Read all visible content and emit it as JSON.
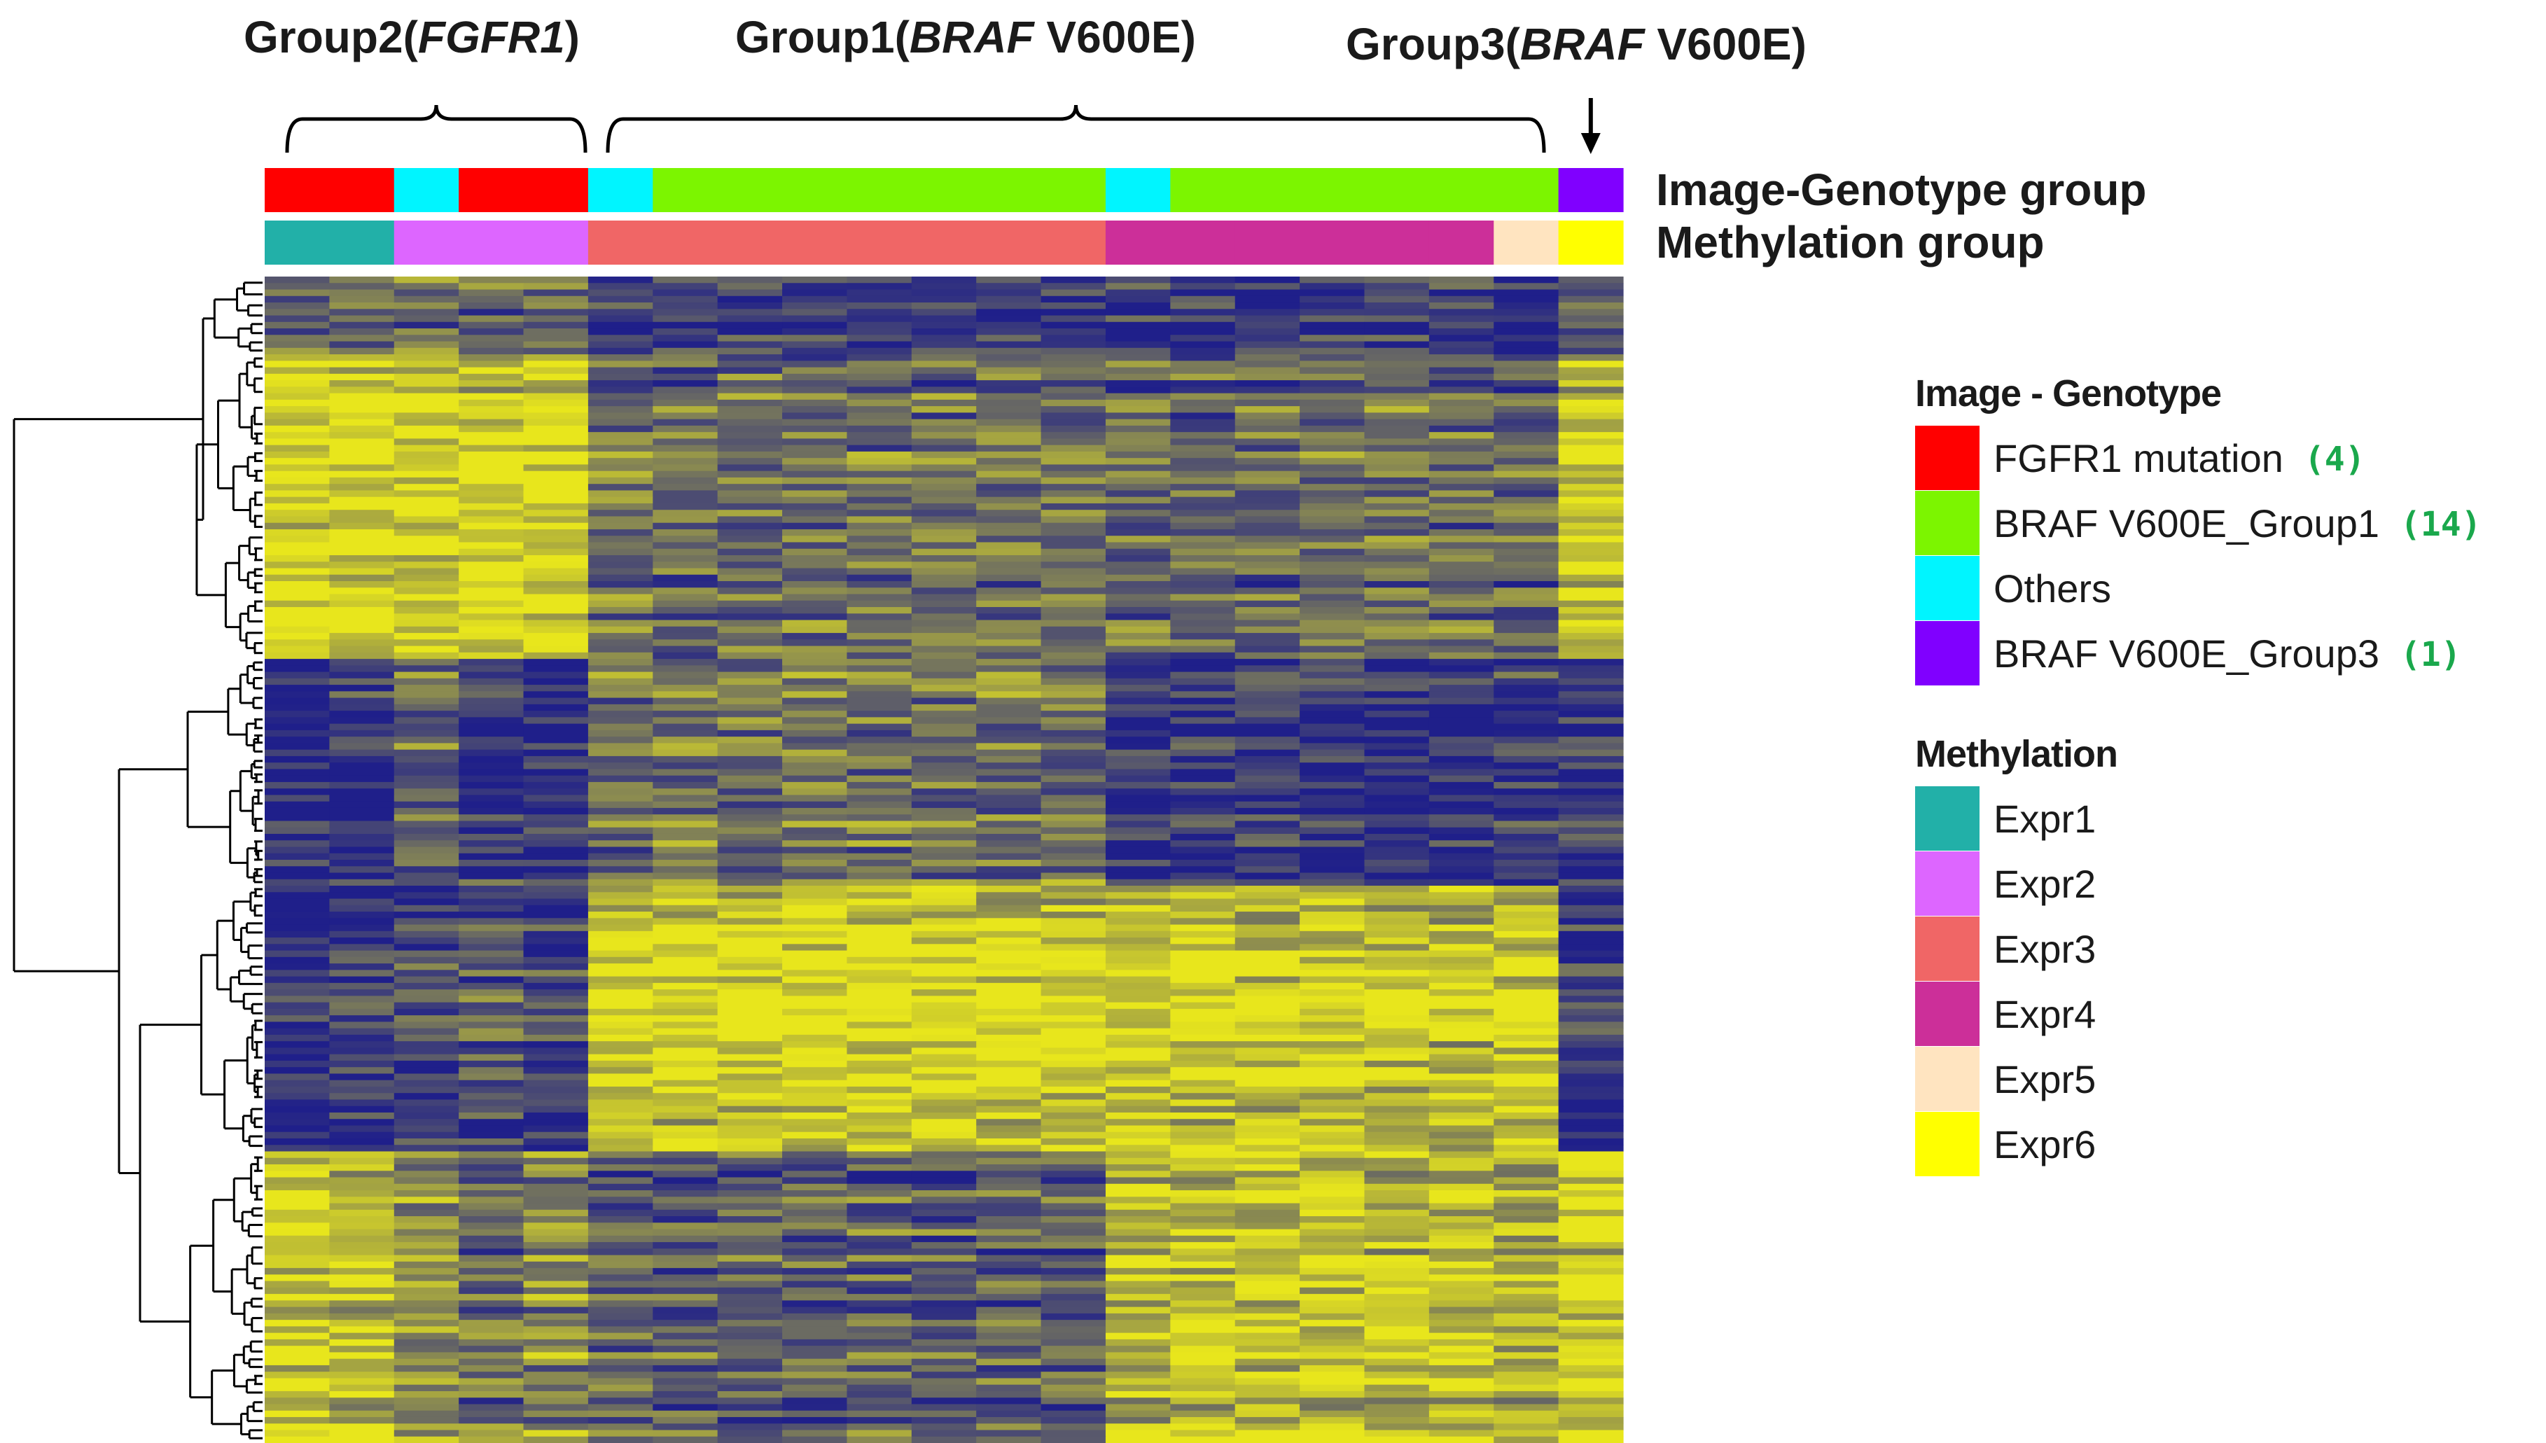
{
  "chart_data": {
    "type": "heatmap",
    "column_groups": [
      {
        "prefix": "Group2(",
        "gene": "FGFR1",
        "suffix": ")",
        "cols": [
          0,
          4
        ]
      },
      {
        "prefix": "Group1(",
        "gene": "BRAF",
        "suffix": " V600E)",
        "cols": [
          5,
          19
        ]
      },
      {
        "prefix": "Group3(",
        "gene": "BRAF",
        "suffix": " V600E)",
        "cols": [
          20,
          20
        ]
      }
    ],
    "tracks": [
      {
        "label": "Image-Genotype group",
        "values": [
          0,
          0,
          2,
          0,
          0,
          2,
          1,
          1,
          1,
          1,
          1,
          1,
          1,
          2,
          1,
          1,
          1,
          1,
          1,
          1,
          3
        ]
      },
      {
        "label": "Methylation group",
        "values": [
          0,
          0,
          1,
          1,
          1,
          2,
          2,
          2,
          2,
          2,
          2,
          2,
          2,
          3,
          3,
          3,
          3,
          3,
          3,
          4,
          5
        ]
      }
    ],
    "n_columns": 21,
    "n_rows": 180,
    "row_blocks": [
      {
        "rows": 12,
        "base": [
          0.35,
          0.4,
          0.45,
          0.4,
          0.4,
          0.15,
          0.15,
          0.18,
          0.15,
          0.15,
          0.12,
          0.15,
          0.15,
          0.15,
          0.15,
          0.1,
          0.15,
          0.15,
          0.2,
          0.1,
          0.3
        ]
      },
      {
        "rows": 47,
        "base": [
          0.95,
          0.9,
          0.88,
          0.9,
          0.95,
          0.45,
          0.4,
          0.42,
          0.4,
          0.42,
          0.4,
          0.42,
          0.42,
          0.4,
          0.38,
          0.38,
          0.4,
          0.4,
          0.42,
          0.35,
          0.85
        ]
      },
      {
        "rows": 35,
        "base": [
          0.05,
          0.1,
          0.4,
          0.15,
          0.1,
          0.4,
          0.45,
          0.45,
          0.45,
          0.45,
          0.45,
          0.45,
          0.45,
          0.1,
          0.1,
          0.15,
          0.12,
          0.12,
          0.15,
          0.1,
          0.15
        ]
      },
      {
        "rows": 41,
        "base": [
          0.05,
          0.15,
          0.2,
          0.25,
          0.15,
          0.9,
          0.9,
          0.92,
          0.92,
          0.95,
          0.95,
          0.92,
          0.9,
          0.88,
          0.85,
          0.85,
          0.88,
          0.85,
          0.85,
          0.9,
          0.1
        ]
      },
      {
        "rows": 45,
        "base": [
          0.9,
          0.85,
          0.55,
          0.45,
          0.55,
          0.35,
          0.35,
          0.35,
          0.35,
          0.35,
          0.35,
          0.35,
          0.35,
          0.8,
          0.8,
          0.82,
          0.8,
          0.82,
          0.8,
          0.75,
          0.9
        ]
      }
    ],
    "color_low": "#1f1f8a",
    "color_mid": "#7a7a5a",
    "color_high": "#e8e61c",
    "legend_genotype": {
      "title": "Image - Genotype",
      "items": [
        {
          "label": "FGFR1 mutation",
          "count": "(4)",
          "color": "#ff0000"
        },
        {
          "label": "BRAF V600E_Group1",
          "count": "(14)",
          "color": "#7cf500"
        },
        {
          "label": "Others",
          "count": "",
          "color": "#00f5ff"
        },
        {
          "label": "BRAF V600E_Group3",
          "count": "(1)",
          "color": "#8000ff"
        }
      ]
    },
    "legend_methylation": {
      "title": "Methylation",
      "items": [
        {
          "label": "Expr1",
          "color": "#22b0a8"
        },
        {
          "label": "Expr2",
          "color": "#dd66ff"
        },
        {
          "label": "Expr3",
          "color": "#f06666"
        },
        {
          "label": "Expr4",
          "color": "#cc2f99"
        },
        {
          "label": "Expr5",
          "color": "#ffe4c0"
        },
        {
          "label": "Expr6",
          "color": "#ffff00"
        }
      ]
    }
  }
}
